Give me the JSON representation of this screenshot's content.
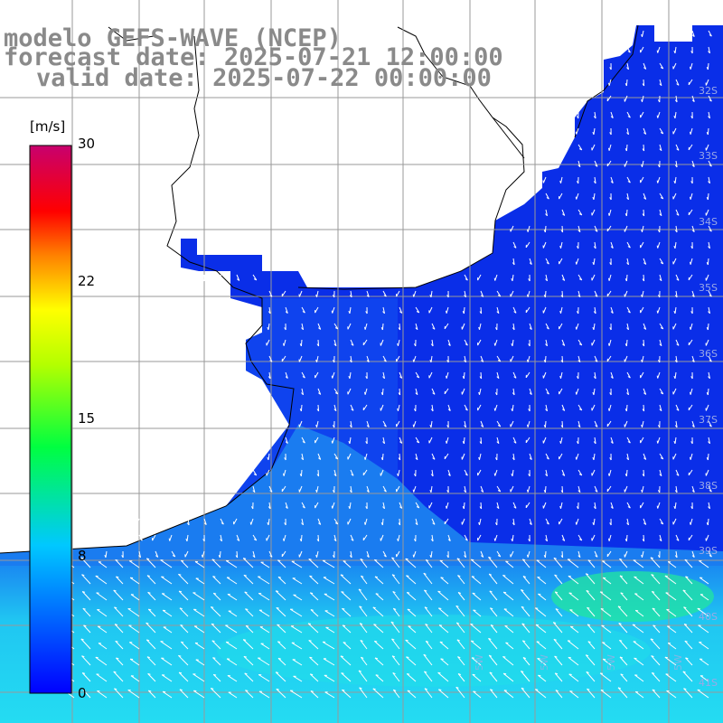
{
  "title": {
    "line1": "modelo GEFS-WAVE (NCEP)",
    "line2": "forecast date: 2025-07-21 12:00:00",
    "line3": "valid date: 2025-07-22 00:00:00"
  },
  "colorbar": {
    "unit": "[m/s]",
    "ticks": [
      "0",
      "8",
      "15",
      "22",
      "30"
    ],
    "colors": [
      "#0000ff",
      "#00b4ff",
      "#00ffd8",
      "#00ff00",
      "#ffff00",
      "#ff8000",
      "#ff0000",
      "#c8006e"
    ]
  },
  "lat_labels": [
    "32S",
    "33S",
    "34S",
    "35S",
    "36S",
    "37S",
    "38S",
    "39S",
    "40S",
    "41S"
  ],
  "lon_labels": [
    "5W",
    "5W",
    "5W",
    "5W"
  ],
  "colors": {
    "ocean_deep": "#0a2ee8",
    "ocean_mid": "#1e78f0",
    "ocean_light": "#22d6f0",
    "ocean_green": "#22e6a0",
    "land": "#ffffff",
    "grid": "#999999"
  }
}
